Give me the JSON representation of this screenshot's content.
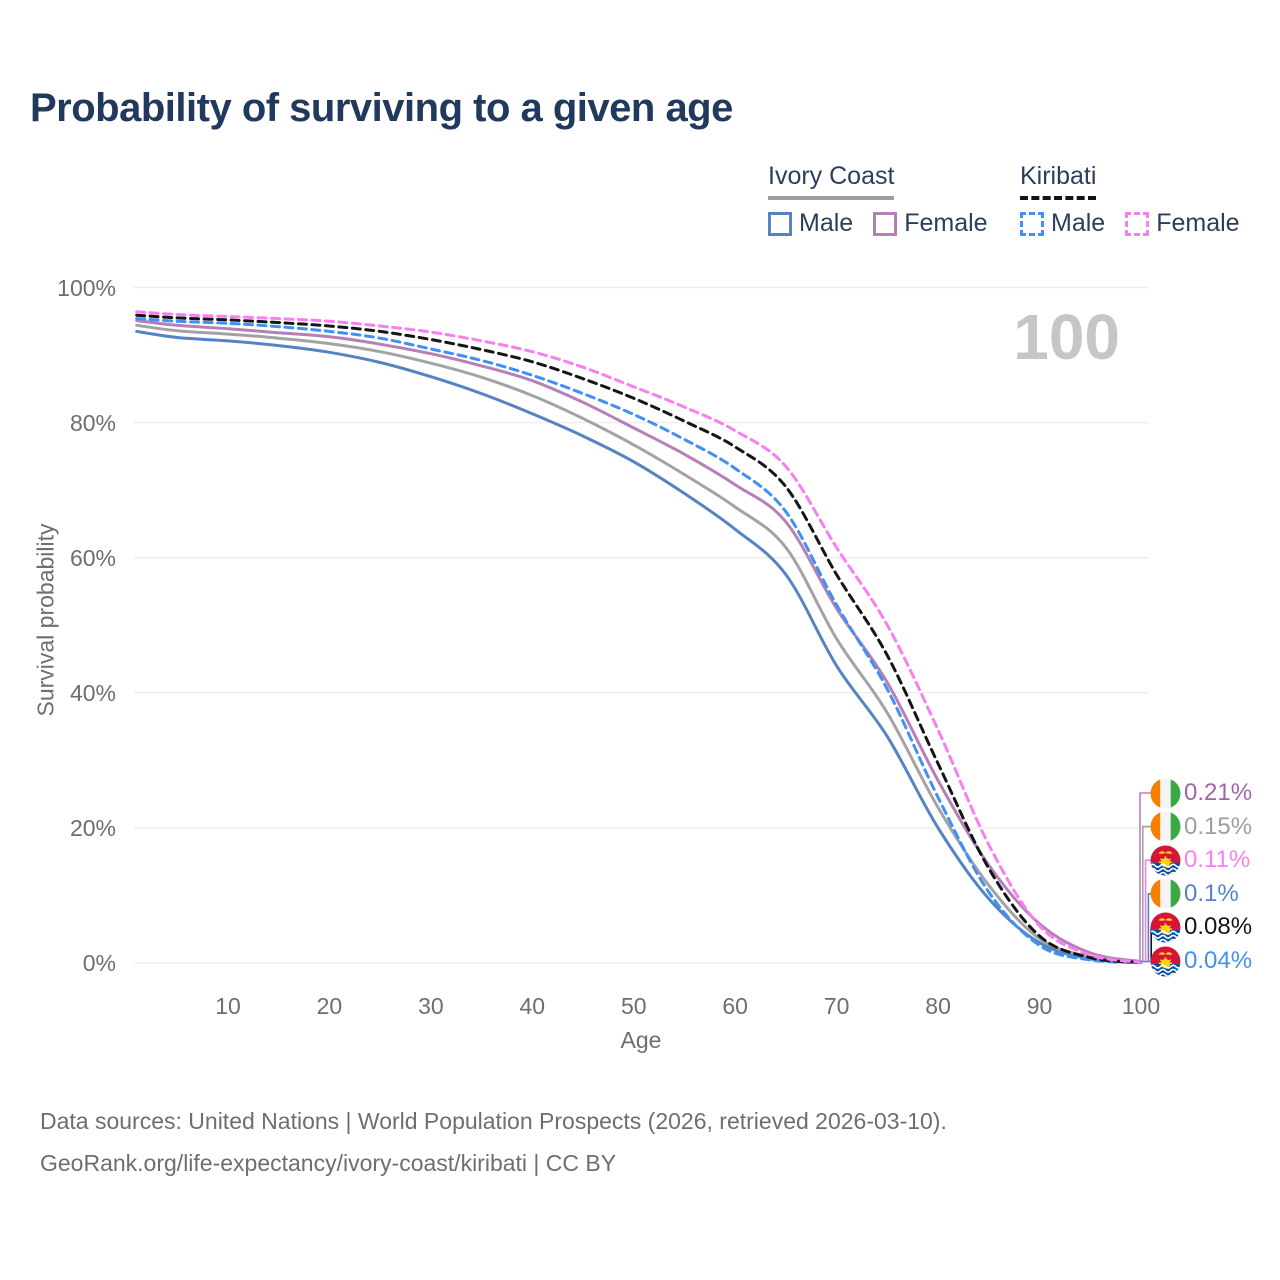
{
  "title": "Probability of surviving to a given age",
  "watermark": "100",
  "legend": {
    "groups": [
      {
        "name": "Ivory Coast",
        "line_style": "solid",
        "underline_color": "#9e9e9e",
        "items": [
          {
            "label": "Male",
            "color": "#5584c4",
            "dashed": false
          },
          {
            "label": "Female",
            "color": "#b580b8",
            "dashed": false
          }
        ]
      },
      {
        "name": "Kiribati",
        "line_style": "dashed",
        "underline_color": "#141414",
        "items": [
          {
            "label": "Male",
            "color": "#4190f4",
            "dashed": true
          },
          {
            "label": "Female",
            "color": "#fb7ef1",
            "dashed": true
          }
        ]
      }
    ]
  },
  "axes": {
    "x_label": "Age",
    "y_label": "Survival probability",
    "x_ticks": [
      10,
      20,
      30,
      40,
      50,
      60,
      70,
      80,
      90,
      100
    ],
    "y_ticks": [
      "0%",
      "20%",
      "40%",
      "60%",
      "80%",
      "100%"
    ],
    "y_ticks_pct": [
      0,
      20,
      40,
      60,
      80,
      100
    ]
  },
  "chart_data": {
    "type": "line",
    "title": "Probability of surviving to a given age",
    "xlabel": "Age",
    "ylabel": "Survival probability",
    "xlim": [
      0,
      110
    ],
    "ylim": [
      0,
      100
    ],
    "grid": "horizontal",
    "legend_position": "top-right",
    "ages": [
      1,
      5,
      10,
      15,
      20,
      25,
      30,
      35,
      40,
      45,
      50,
      55,
      60,
      65,
      70,
      75,
      80,
      85,
      90,
      95,
      100
    ],
    "series": [
      {
        "id": "ivory-coast-male",
        "name": "Ivory Coast Male",
        "color": "#5584c4",
        "dashed": false,
        "values": [
          93.5,
          92.6,
          92.1,
          91.4,
          90.4,
          88.9,
          86.8,
          84.3,
          81.3,
          78.0,
          74.2,
          69.5,
          64.2,
          57.5,
          44.0,
          33.5,
          20.0,
          9.5,
          3.0,
          0.6,
          0.1
        ]
      },
      {
        "id": "ivory-coast-both",
        "name": "Ivory Coast",
        "color": "#a3a3a3",
        "dashed": false,
        "values": [
          94.4,
          93.6,
          93.1,
          92.5,
          91.7,
          90.5,
          88.8,
          86.7,
          84.0,
          80.6,
          76.7,
          72.3,
          67.5,
          61.5,
          48.0,
          37.0,
          23.0,
          11.5,
          3.6,
          0.9,
          0.15
        ]
      },
      {
        "id": "ivory-coast-female",
        "name": "Ivory Coast Female",
        "color": "#b580b8",
        "dashed": false,
        "values": [
          95.1,
          94.4,
          93.9,
          93.3,
          92.7,
          91.6,
          90.2,
          88.4,
          86.2,
          83.0,
          79.2,
          75.3,
          70.8,
          65.3,
          52.5,
          41.5,
          27.0,
          14.5,
          5.8,
          1.5,
          0.21
        ]
      },
      {
        "id": "kiribati-male",
        "name": "Kiribati Male",
        "color": "#4190f4",
        "dashed": true,
        "values": [
          95.4,
          95.0,
          94.7,
          94.2,
          93.5,
          92.5,
          90.9,
          89.2,
          87.0,
          84.3,
          81.2,
          77.5,
          73.2,
          66.8,
          53.0,
          40.5,
          24.5,
          10.5,
          2.6,
          0.45,
          0.04
        ]
      },
      {
        "id": "kiribati-both",
        "name": "Kiribati",
        "color": "#151515",
        "dashed": true,
        "values": [
          95.9,
          95.5,
          95.2,
          94.8,
          94.3,
          93.5,
          92.3,
          90.8,
          89.0,
          86.5,
          83.6,
          80.2,
          76.4,
          70.5,
          57.5,
          45.5,
          29.5,
          14.0,
          4.0,
          0.8,
          0.08
        ]
      },
      {
        "id": "kiribati-female",
        "name": "Kiribati Female",
        "color": "#fb7ef1",
        "dashed": true,
        "values": [
          96.4,
          96.0,
          95.7,
          95.4,
          95.0,
          94.3,
          93.4,
          92.1,
          90.5,
          88.2,
          85.3,
          82.3,
          78.8,
          73.5,
          61.5,
          50.0,
          34.5,
          17.5,
          5.5,
          1.2,
          0.11
        ]
      }
    ]
  },
  "end_labels": [
    {
      "value": "0.21%",
      "series": "ivory-coast-female",
      "flag": "ivory-coast",
      "text_color": "#a363ab",
      "line_color": "#b580b8"
    },
    {
      "value": "0.15%",
      "series": "ivory-coast-both",
      "flag": "ivory-coast",
      "text_color": "#9e9e9e",
      "line_color": "#a3a3a3"
    },
    {
      "value": "0.11%",
      "series": "kiribati-female",
      "flag": "kiribati",
      "text_color": "#fb7ef1",
      "line_color": "#fb7ef1"
    },
    {
      "value": "0.1%",
      "series": "ivory-coast-male",
      "flag": "ivory-coast",
      "text_color": "#5584c4",
      "line_color": "#5584c4"
    },
    {
      "value": "0.08%",
      "series": "kiribati-both",
      "flag": "kiribati",
      "text_color": "#151515",
      "line_color": "#151515"
    },
    {
      "value": "0.04%",
      "series": "kiribati-male",
      "flag": "kiribati",
      "text_color": "#4190f4",
      "line_color": "#4190f4"
    }
  ],
  "flag_colors": {
    "ivory_coast": {
      "orange": "#f77f00",
      "white": "#f4f4f4",
      "green": "#3aa845"
    },
    "kiribati": {
      "red": "#d41538",
      "gold": "#fcd116",
      "blue": "#0b4ea2",
      "wave_white": "#ffffff"
    }
  },
  "grid_color": "#ececec",
  "source": {
    "line1": "Data sources: United Nations | World Population Prospects (2026, retrieved 2026-03-10).",
    "line2": "GeoRank.org/life-expectancy/ivory-coast/kiribati | CC BY"
  }
}
